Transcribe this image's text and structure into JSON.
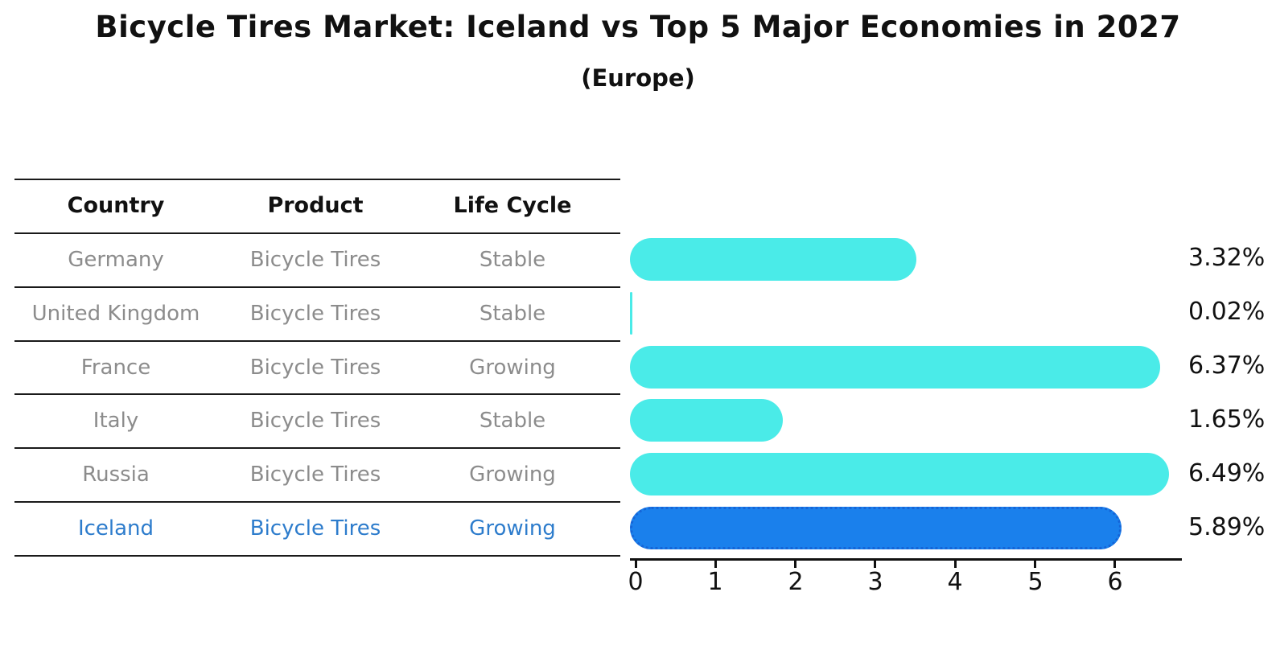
{
  "title": "Bicycle Tires Market: Iceland vs Top 5 Major Economies in 2027",
  "subtitle": "(Europe)",
  "table": {
    "headers": [
      "Country",
      "Product",
      "Life Cycle"
    ],
    "rows": [
      {
        "country": "Germany",
        "product": "Bicycle Tires",
        "life_cycle": "Stable",
        "highlight": false
      },
      {
        "country": "United Kingdom",
        "product": "Bicycle Tires",
        "life_cycle": "Stable",
        "highlight": false
      },
      {
        "country": "France",
        "product": "Bicycle Tires",
        "life_cycle": "Growing",
        "highlight": false
      },
      {
        "country": "Italy",
        "product": "Bicycle Tires",
        "life_cycle": "Stable",
        "highlight": false
      },
      {
        "country": "Russia",
        "product": "Bicycle Tires",
        "life_cycle": "Growing",
        "highlight": false
      },
      {
        "country": "Iceland",
        "product": "Bicycle Tires",
        "life_cycle": "Growing",
        "highlight": true
      }
    ]
  },
  "chart_data": {
    "type": "bar",
    "orientation": "horizontal",
    "title": "Bicycle Tires Market: Iceland vs Top 5 Major Economies in 2027",
    "subtitle": "(Europe)",
    "categories": [
      "Germany",
      "United Kingdom",
      "France",
      "Italy",
      "Russia",
      "Iceland"
    ],
    "values": [
      3.32,
      0.02,
      6.37,
      1.65,
      6.49,
      5.89
    ],
    "value_labels": [
      "3.32%",
      "0.02%",
      "6.37%",
      "1.65%",
      "6.49%",
      "5.89%"
    ],
    "unit": "%",
    "x_ticks": [
      0,
      1,
      2,
      3,
      4,
      5,
      6
    ],
    "xlim": [
      0,
      6.9
    ],
    "xlabel": "",
    "ylabel": "",
    "grid": false,
    "legend": false,
    "bar_color": "#4AEBE8",
    "highlight_color": "#1A80EC",
    "highlight_index": 5,
    "highlight_border_style": "dotted"
  },
  "colors": {
    "background": "#ffffff",
    "text": "#111111",
    "table_text": "#8c8c8c",
    "highlight_text": "#2d7ccc",
    "line": "#1a1a1a"
  }
}
